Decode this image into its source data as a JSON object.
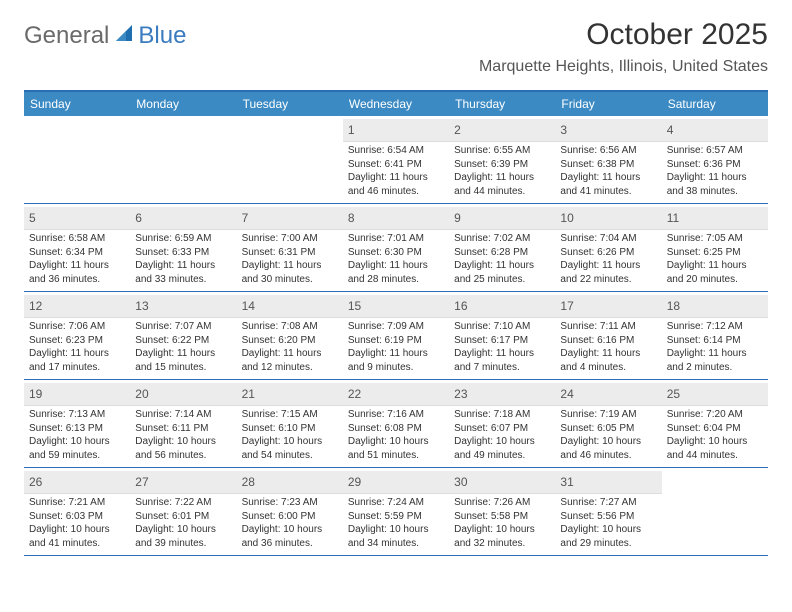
{
  "brand": {
    "part1": "General",
    "part2": "Blue"
  },
  "title": "October 2025",
  "location": "Marquette Heights, Illinois, United States",
  "colors": {
    "header_bg": "#3b8ac4",
    "border": "#2a6fb5",
    "daynum_bg": "#ececec",
    "logo_gray": "#6a6a6a",
    "logo_blue": "#3b7bbf"
  },
  "daysOfWeek": [
    "Sunday",
    "Monday",
    "Tuesday",
    "Wednesday",
    "Thursday",
    "Friday",
    "Saturday"
  ],
  "weeks": [
    [
      {
        "n": "",
        "sr": "",
        "ss": "",
        "dl": ""
      },
      {
        "n": "",
        "sr": "",
        "ss": "",
        "dl": ""
      },
      {
        "n": "",
        "sr": "",
        "ss": "",
        "dl": ""
      },
      {
        "n": "1",
        "sr": "6:54 AM",
        "ss": "6:41 PM",
        "dl": "11 hours and 46 minutes."
      },
      {
        "n": "2",
        "sr": "6:55 AM",
        "ss": "6:39 PM",
        "dl": "11 hours and 44 minutes."
      },
      {
        "n": "3",
        "sr": "6:56 AM",
        "ss": "6:38 PM",
        "dl": "11 hours and 41 minutes."
      },
      {
        "n": "4",
        "sr": "6:57 AM",
        "ss": "6:36 PM",
        "dl": "11 hours and 38 minutes."
      }
    ],
    [
      {
        "n": "5",
        "sr": "6:58 AM",
        "ss": "6:34 PM",
        "dl": "11 hours and 36 minutes."
      },
      {
        "n": "6",
        "sr": "6:59 AM",
        "ss": "6:33 PM",
        "dl": "11 hours and 33 minutes."
      },
      {
        "n": "7",
        "sr": "7:00 AM",
        "ss": "6:31 PM",
        "dl": "11 hours and 30 minutes."
      },
      {
        "n": "8",
        "sr": "7:01 AM",
        "ss": "6:30 PM",
        "dl": "11 hours and 28 minutes."
      },
      {
        "n": "9",
        "sr": "7:02 AM",
        "ss": "6:28 PM",
        "dl": "11 hours and 25 minutes."
      },
      {
        "n": "10",
        "sr": "7:04 AM",
        "ss": "6:26 PM",
        "dl": "11 hours and 22 minutes."
      },
      {
        "n": "11",
        "sr": "7:05 AM",
        "ss": "6:25 PM",
        "dl": "11 hours and 20 minutes."
      }
    ],
    [
      {
        "n": "12",
        "sr": "7:06 AM",
        "ss": "6:23 PM",
        "dl": "11 hours and 17 minutes."
      },
      {
        "n": "13",
        "sr": "7:07 AM",
        "ss": "6:22 PM",
        "dl": "11 hours and 15 minutes."
      },
      {
        "n": "14",
        "sr": "7:08 AM",
        "ss": "6:20 PM",
        "dl": "11 hours and 12 minutes."
      },
      {
        "n": "15",
        "sr": "7:09 AM",
        "ss": "6:19 PM",
        "dl": "11 hours and 9 minutes."
      },
      {
        "n": "16",
        "sr": "7:10 AM",
        "ss": "6:17 PM",
        "dl": "11 hours and 7 minutes."
      },
      {
        "n": "17",
        "sr": "7:11 AM",
        "ss": "6:16 PM",
        "dl": "11 hours and 4 minutes."
      },
      {
        "n": "18",
        "sr": "7:12 AM",
        "ss": "6:14 PM",
        "dl": "11 hours and 2 minutes."
      }
    ],
    [
      {
        "n": "19",
        "sr": "7:13 AM",
        "ss": "6:13 PM",
        "dl": "10 hours and 59 minutes."
      },
      {
        "n": "20",
        "sr": "7:14 AM",
        "ss": "6:11 PM",
        "dl": "10 hours and 56 minutes."
      },
      {
        "n": "21",
        "sr": "7:15 AM",
        "ss": "6:10 PM",
        "dl": "10 hours and 54 minutes."
      },
      {
        "n": "22",
        "sr": "7:16 AM",
        "ss": "6:08 PM",
        "dl": "10 hours and 51 minutes."
      },
      {
        "n": "23",
        "sr": "7:18 AM",
        "ss": "6:07 PM",
        "dl": "10 hours and 49 minutes."
      },
      {
        "n": "24",
        "sr": "7:19 AM",
        "ss": "6:05 PM",
        "dl": "10 hours and 46 minutes."
      },
      {
        "n": "25",
        "sr": "7:20 AM",
        "ss": "6:04 PM",
        "dl": "10 hours and 44 minutes."
      }
    ],
    [
      {
        "n": "26",
        "sr": "7:21 AM",
        "ss": "6:03 PM",
        "dl": "10 hours and 41 minutes."
      },
      {
        "n": "27",
        "sr": "7:22 AM",
        "ss": "6:01 PM",
        "dl": "10 hours and 39 minutes."
      },
      {
        "n": "28",
        "sr": "7:23 AM",
        "ss": "6:00 PM",
        "dl": "10 hours and 36 minutes."
      },
      {
        "n": "29",
        "sr": "7:24 AM",
        "ss": "5:59 PM",
        "dl": "10 hours and 34 minutes."
      },
      {
        "n": "30",
        "sr": "7:26 AM",
        "ss": "5:58 PM",
        "dl": "10 hours and 32 minutes."
      },
      {
        "n": "31",
        "sr": "7:27 AM",
        "ss": "5:56 PM",
        "dl": "10 hours and 29 minutes."
      },
      {
        "n": "",
        "sr": "",
        "ss": "",
        "dl": ""
      }
    ]
  ],
  "labels": {
    "sunrise": "Sunrise:",
    "sunset": "Sunset:",
    "daylight": "Daylight:"
  }
}
